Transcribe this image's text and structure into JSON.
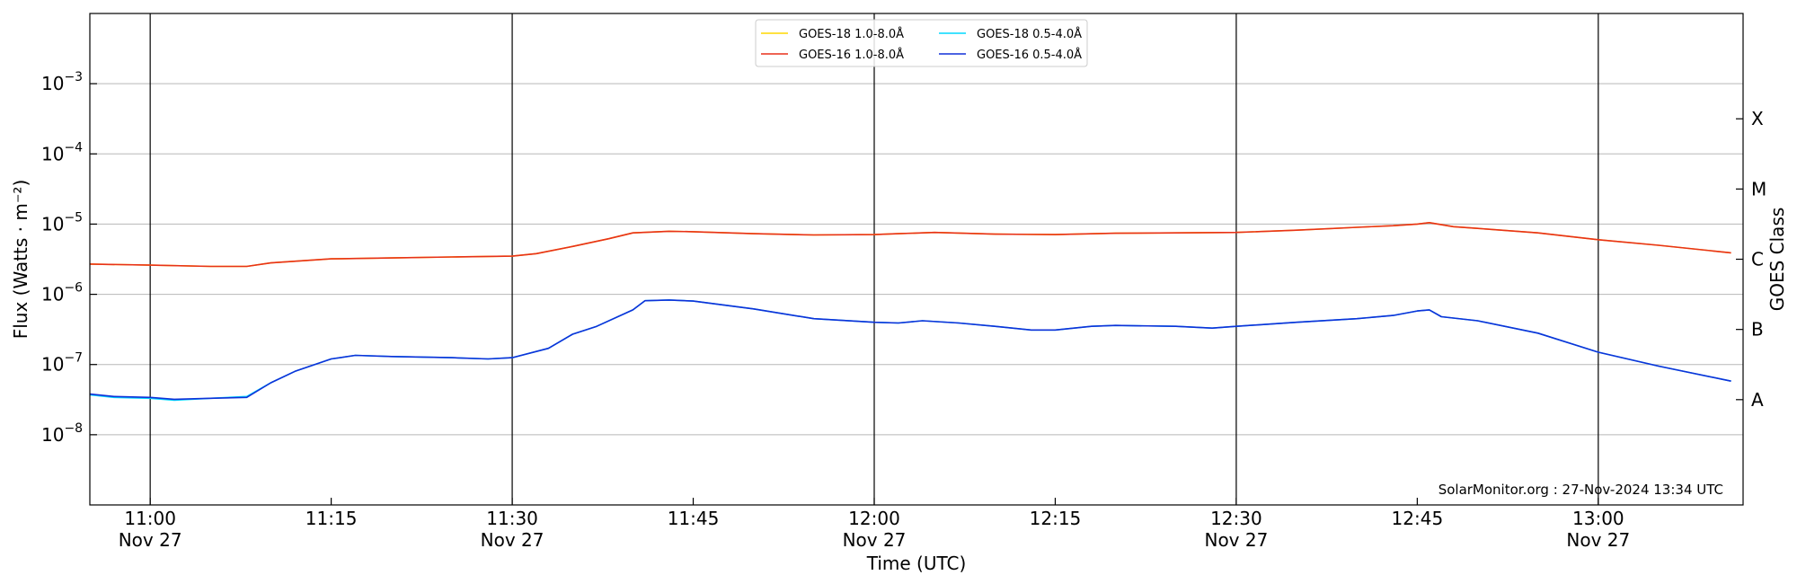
{
  "chart_data": {
    "type": "line",
    "xlabel": "Time (UTC)",
    "ylabel": "Flux (Watts · m⁻²)",
    "y2label": "GOES Class",
    "yscale": "log",
    "xlim": [
      "10:55",
      "13:12"
    ],
    "ylim": [
      1e-09,
      0.01
    ],
    "grid": "horizontal at decades",
    "legend_position": "top-center",
    "credit": "SolarMonitor.org : 27-Nov-2024 13:34 UTC",
    "x_ticks": [
      {
        "time": "11:00",
        "label": "11:00",
        "date": "Nov 27"
      },
      {
        "time": "11:15",
        "label": "11:15",
        "date": ""
      },
      {
        "time": "11:30",
        "label": "11:30",
        "date": "Nov 27"
      },
      {
        "time": "11:45",
        "label": "11:45",
        "date": ""
      },
      {
        "time": "12:00",
        "label": "12:00",
        "date": "Nov 27"
      },
      {
        "time": "12:15",
        "label": "12:15",
        "date": ""
      },
      {
        "time": "12:30",
        "label": "12:30",
        "date": "Nov 27"
      },
      {
        "time": "12:45",
        "label": "12:45",
        "date": ""
      },
      {
        "time": "13:00",
        "label": "13:00",
        "date": "Nov 27"
      }
    ],
    "vertical_lines": [
      "11:00",
      "11:30",
      "12:00",
      "12:30",
      "13:00"
    ],
    "y_ticks": [
      {
        "value": 1e-08,
        "base": "10",
        "exp": "−8"
      },
      {
        "value": 1e-07,
        "base": "10",
        "exp": "−7"
      },
      {
        "value": 1e-06,
        "base": "10",
        "exp": "−6"
      },
      {
        "value": 1e-05,
        "base": "10",
        "exp": "−5"
      },
      {
        "value": 0.0001,
        "base": "10",
        "exp": "−4"
      },
      {
        "value": 0.001,
        "base": "10",
        "exp": "−3"
      }
    ],
    "goes_classes": [
      {
        "label": "A",
        "value": 3.16e-08
      },
      {
        "label": "B",
        "value": 3.16e-07
      },
      {
        "label": "C",
        "value": 3.16e-06
      },
      {
        "label": "M",
        "value": 3.16e-05
      },
      {
        "label": "X",
        "value": 0.000316
      }
    ],
    "series": [
      {
        "name": "GOES-18 1.0-8.0Å",
        "color": "#ffd700",
        "x": [
          "10:55",
          "11:00",
          "11:05",
          "11:08",
          "11:10",
          "11:15",
          "11:20",
          "11:25",
          "11:30",
          "11:32",
          "11:35",
          "11:38",
          "11:40",
          "11:43",
          "11:45",
          "11:50",
          "11:55",
          "12:00",
          "12:02",
          "12:05",
          "12:10",
          "12:15",
          "12:20",
          "12:25",
          "12:30",
          "12:35",
          "12:40",
          "12:43",
          "12:45",
          "12:46",
          "12:48",
          "12:50",
          "12:55",
          "13:00",
          "13:05",
          "13:11"
        ],
        "y": [
          2.7e-06,
          2.6e-06,
          2.5e-06,
          2.5e-06,
          2.8e-06,
          3.2e-06,
          3.3e-06,
          3.4e-06,
          3.5e-06,
          3.8e-06,
          4.8e-06,
          6.2e-06,
          7.5e-06,
          7.9e-06,
          7.8e-06,
          7.3e-06,
          7e-06,
          7.1e-06,
          7.3e-06,
          7.6e-06,
          7.2e-06,
          7.1e-06,
          7.4e-06,
          7.5e-06,
          7.6e-06,
          8.2e-06,
          9e-06,
          9.5e-06,
          1e-05,
          1.05e-05,
          9.2e-06,
          8.7e-06,
          7.5e-06,
          6e-06,
          5e-06,
          3.9e-06
        ]
      },
      {
        "name": "GOES-18 0.5-4.0Å",
        "color": "#00d8ff",
        "x": [
          "10:55",
          "10:57",
          "11:00",
          "11:02",
          "11:05",
          "11:08",
          "11:10",
          "11:12",
          "11:15",
          "11:17",
          "11:20",
          "11:25",
          "11:28",
          "11:30",
          "11:33",
          "11:35",
          "11:37",
          "11:40",
          "11:41",
          "11:43",
          "11:45",
          "11:50",
          "11:55",
          "12:00",
          "12:02",
          "12:04",
          "12:07",
          "12:10",
          "12:13",
          "12:15",
          "12:18",
          "12:20",
          "12:25",
          "12:28",
          "12:30",
          "12:35",
          "12:40",
          "12:43",
          "12:45",
          "12:46",
          "12:47",
          "12:50",
          "12:55",
          "13:00",
          "13:05",
          "13:11"
        ],
        "y": [
          3.7e-08,
          3.4e-08,
          3.3e-08,
          3.1e-08,
          3.3e-08,
          3.5e-08,
          5.5e-08,
          8e-08,
          1.2e-07,
          1.35e-07,
          1.3e-07,
          1.25e-07,
          1.2e-07,
          1.25e-07,
          1.7e-07,
          2.7e-07,
          3.5e-07,
          6e-07,
          8.1e-07,
          8.3e-07,
          8e-07,
          6.2e-07,
          4.5e-07,
          4e-07,
          3.9e-07,
          4.2e-07,
          3.9e-07,
          3.5e-07,
          3.1e-07,
          3.1e-07,
          3.5e-07,
          3.6e-07,
          3.5e-07,
          3.3e-07,
          3.5e-07,
          4e-07,
          4.5e-07,
          5e-07,
          5.8e-07,
          6e-07,
          4.8e-07,
          4.2e-07,
          2.8e-07,
          1.5e-07,
          9.5e-08,
          5.8e-08
        ]
      },
      {
        "name": "GOES-16 1.0-8.0Å",
        "color": "#e8311a",
        "x": [
          "10:55",
          "11:00",
          "11:05",
          "11:08",
          "11:10",
          "11:15",
          "11:20",
          "11:25",
          "11:30",
          "11:32",
          "11:35",
          "11:38",
          "11:40",
          "11:43",
          "11:45",
          "11:50",
          "11:55",
          "12:00",
          "12:02",
          "12:05",
          "12:10",
          "12:15",
          "12:20",
          "12:25",
          "12:30",
          "12:35",
          "12:40",
          "12:43",
          "12:45",
          "12:46",
          "12:48",
          "12:50",
          "12:55",
          "13:00",
          "13:05",
          "13:11"
        ],
        "y": [
          2.7e-06,
          2.6e-06,
          2.5e-06,
          2.5e-06,
          2.8e-06,
          3.2e-06,
          3.3e-06,
          3.4e-06,
          3.5e-06,
          3.8e-06,
          4.8e-06,
          6.2e-06,
          7.5e-06,
          7.9e-06,
          7.8e-06,
          7.3e-06,
          7e-06,
          7.1e-06,
          7.3e-06,
          7.6e-06,
          7.2e-06,
          7.1e-06,
          7.4e-06,
          7.5e-06,
          7.6e-06,
          8.2e-06,
          9e-06,
          9.5e-06,
          1e-05,
          1.05e-05,
          9.2e-06,
          8.7e-06,
          7.5e-06,
          6e-06,
          5e-06,
          3.9e-06
        ]
      },
      {
        "name": "GOES-16 0.5-4.0Å",
        "color": "#1030d8",
        "x": [
          "10:55",
          "10:57",
          "11:00",
          "11:02",
          "11:05",
          "11:08",
          "11:10",
          "11:12",
          "11:15",
          "11:17",
          "11:20",
          "11:25",
          "11:28",
          "11:30",
          "11:33",
          "11:35",
          "11:37",
          "11:40",
          "11:41",
          "11:43",
          "11:45",
          "11:50",
          "11:55",
          "12:00",
          "12:02",
          "12:04",
          "12:07",
          "12:10",
          "12:13",
          "12:15",
          "12:18",
          "12:20",
          "12:25",
          "12:28",
          "12:30",
          "12:35",
          "12:40",
          "12:43",
          "12:45",
          "12:46",
          "12:47",
          "12:50",
          "12:55",
          "13:00",
          "13:05",
          "13:11"
        ],
        "y": [
          3.8e-08,
          3.5e-08,
          3.4e-08,
          3.2e-08,
          3.3e-08,
          3.4e-08,
          5.5e-08,
          8e-08,
          1.2e-07,
          1.35e-07,
          1.3e-07,
          1.25e-07,
          1.2e-07,
          1.25e-07,
          1.7e-07,
          2.7e-07,
          3.5e-07,
          6e-07,
          8.1e-07,
          8.3e-07,
          8e-07,
          6.2e-07,
          4.5e-07,
          4e-07,
          3.9e-07,
          4.2e-07,
          3.9e-07,
          3.5e-07,
          3.1e-07,
          3.1e-07,
          3.5e-07,
          3.6e-07,
          3.5e-07,
          3.3e-07,
          3.5e-07,
          4e-07,
          4.5e-07,
          5e-07,
          5.8e-07,
          6e-07,
          4.8e-07,
          4.2e-07,
          2.8e-07,
          1.5e-07,
          9.5e-08,
          5.8e-08
        ]
      }
    ],
    "legend_order": [
      0,
      1,
      2,
      3
    ]
  }
}
